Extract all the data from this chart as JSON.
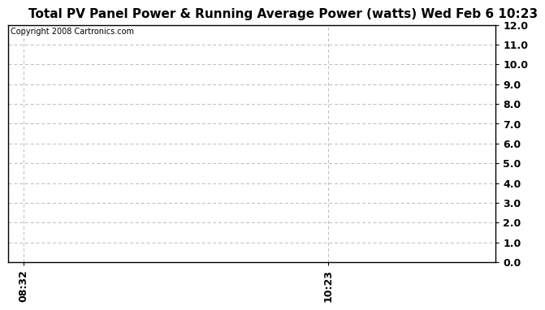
{
  "title": "Total PV Panel Power & Running Average Power (watts) Wed Feb 6 10:23",
  "copyright_text": "Copyright 2008 Cartronics.com",
  "x_ticks": [
    0.0,
    1.0
  ],
  "x_tick_labels": [
    "08:32",
    "10:23"
  ],
  "x_vlines": [
    0.0,
    1.0
  ],
  "ylim": [
    0.0,
    12.0
  ],
  "xlim": [
    -0.05,
    1.55
  ],
  "y_ticks": [
    0.0,
    1.0,
    2.0,
    3.0,
    4.0,
    5.0,
    6.0,
    7.0,
    8.0,
    9.0,
    10.0,
    11.0,
    12.0
  ],
  "y_tick_labels": [
    "0.0",
    "1.0",
    "2.0",
    "3.0",
    "4.0",
    "5.0",
    "6.0",
    "7.0",
    "8.0",
    "9.0",
    "10.0",
    "11.0",
    "12.0"
  ],
  "grid_color": "#bbbbbb",
  "grid_linestyle": "--",
  "vline_color": "#bbbbbb",
  "vline_linestyle": "--",
  "background_color": "#ffffff",
  "title_fontsize": 11,
  "copyright_fontsize": 7,
  "tick_fontsize": 9,
  "border_color": "#000000"
}
